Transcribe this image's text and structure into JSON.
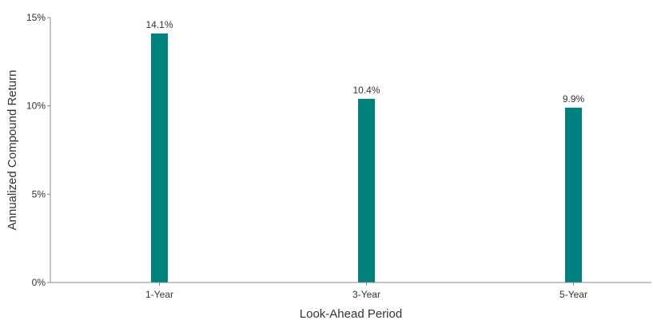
{
  "chart_data": {
    "type": "bar",
    "title": "",
    "xlabel": "Look-Ahead Period",
    "ylabel": "Annualized Compound Return",
    "categories": [
      "1-Year",
      "3-Year",
      "5-Year"
    ],
    "values": [
      14.1,
      10.4,
      9.9
    ],
    "data_labels": [
      "14.1%",
      "10.4%",
      "9.9%"
    ],
    "ylim": [
      0,
      15
    ],
    "yticks": [
      0,
      5,
      10,
      15
    ],
    "ytick_labels": [
      "0%",
      "5%",
      "10%",
      "15%"
    ],
    "grid": false,
    "legend": "none",
    "bar_color": "#00807f"
  }
}
